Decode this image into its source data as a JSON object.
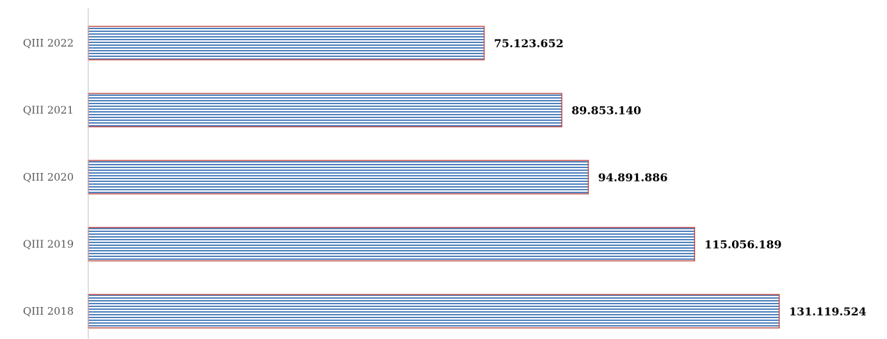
{
  "chart_data": {
    "type": "bar",
    "orientation": "horizontal",
    "categories": [
      "QIII 2018",
      "QIII 2019",
      "QIII 2020",
      "QIII 2021",
      "QIII 2022"
    ],
    "values": [
      131119524,
      115056189,
      94891886,
      89853140,
      75123652
    ],
    "value_labels": [
      "131.119.524",
      "115.056.189",
      "94.891.886",
      "89.853.140",
      "75.123.652"
    ],
    "title": "",
    "xlabel": "",
    "ylabel": "",
    "xlim": [
      0,
      150000000
    ],
    "grid": false,
    "legend": "none",
    "colors": {
      "bar_fill": "#ffffff",
      "bar_stripe": "#4f81bd",
      "bar_border": "#c0504d",
      "axis": "#bfbfbf"
    }
  }
}
